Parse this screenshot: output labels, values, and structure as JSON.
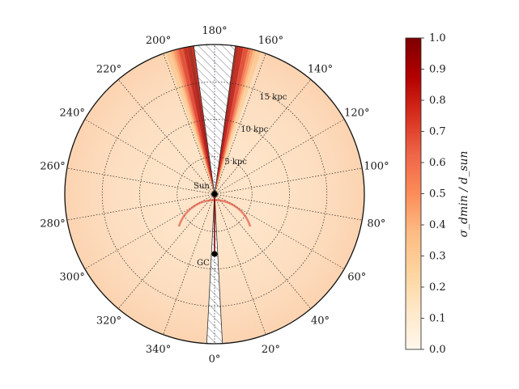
{
  "chart_data": {
    "type": "heatmap",
    "projection": "polar",
    "title": "",
    "angular_axis": {
      "unit": "deg",
      "tick_values": [
        0,
        20,
        40,
        60,
        80,
        100,
        120,
        140,
        160,
        180,
        200,
        220,
        240,
        260,
        280,
        300,
        320,
        340
      ],
      "tick_labels": [
        "0°",
        "20°",
        "40°",
        "60°",
        "80°",
        "100°",
        "120°",
        "140°",
        "160°",
        "180°",
        "200°",
        "220°",
        "240°",
        "260°",
        "280°",
        "300°",
        "320°",
        "340°"
      ],
      "zero_direction": "bottom",
      "direction": "counterclockwise"
    },
    "radial_axis": {
      "unit": "kpc",
      "range": [
        0,
        20
      ],
      "grid_rings": [
        5,
        10,
        15,
        20
      ],
      "labels": [
        {
          "r": 5,
          "text": "5 kpc"
        },
        {
          "r": 10,
          "text": "10 kpc"
        },
        {
          "r": 15,
          "text": "15 kpc"
        }
      ]
    },
    "grid": true,
    "points": [
      {
        "label": "Sun",
        "r": 0,
        "l": 0
      },
      {
        "label": "GC",
        "r": 8,
        "l": 0
      }
    ],
    "colorbar": {
      "label": "σ_dmin / d_sun",
      "range": [
        0,
        1
      ],
      "ticks": [
        0.0,
        0.1,
        0.2,
        0.3,
        0.4,
        0.5,
        0.6,
        0.7,
        0.8,
        0.9,
        1.0
      ],
      "tick_labels": [
        "0.0",
        "0.1",
        "0.2",
        "0.3",
        "0.4",
        "0.5",
        "0.6",
        "0.7",
        "0.8",
        "0.9",
        "1.0"
      ],
      "colormap": "OrRd",
      "colors": [
        "#fff7ec",
        "#fee8c8",
        "#fdd49e",
        "#fdbb84",
        "#fc8d59",
        "#ef6548",
        "#d7301f",
        "#b30000",
        "#7f0000"
      ]
    },
    "masked_regions": [
      {
        "description": "hatched",
        "l_center": 180,
        "l_half_width": 8
      },
      {
        "description": "hatched",
        "l_center": 0,
        "l_half_width": 3
      }
    ],
    "field_model": {
      "base_value": 0.1,
      "ridge_peak_value": 0.95,
      "ridge_l_offset": 9,
      "ridge_width_deg": 5
    }
  }
}
